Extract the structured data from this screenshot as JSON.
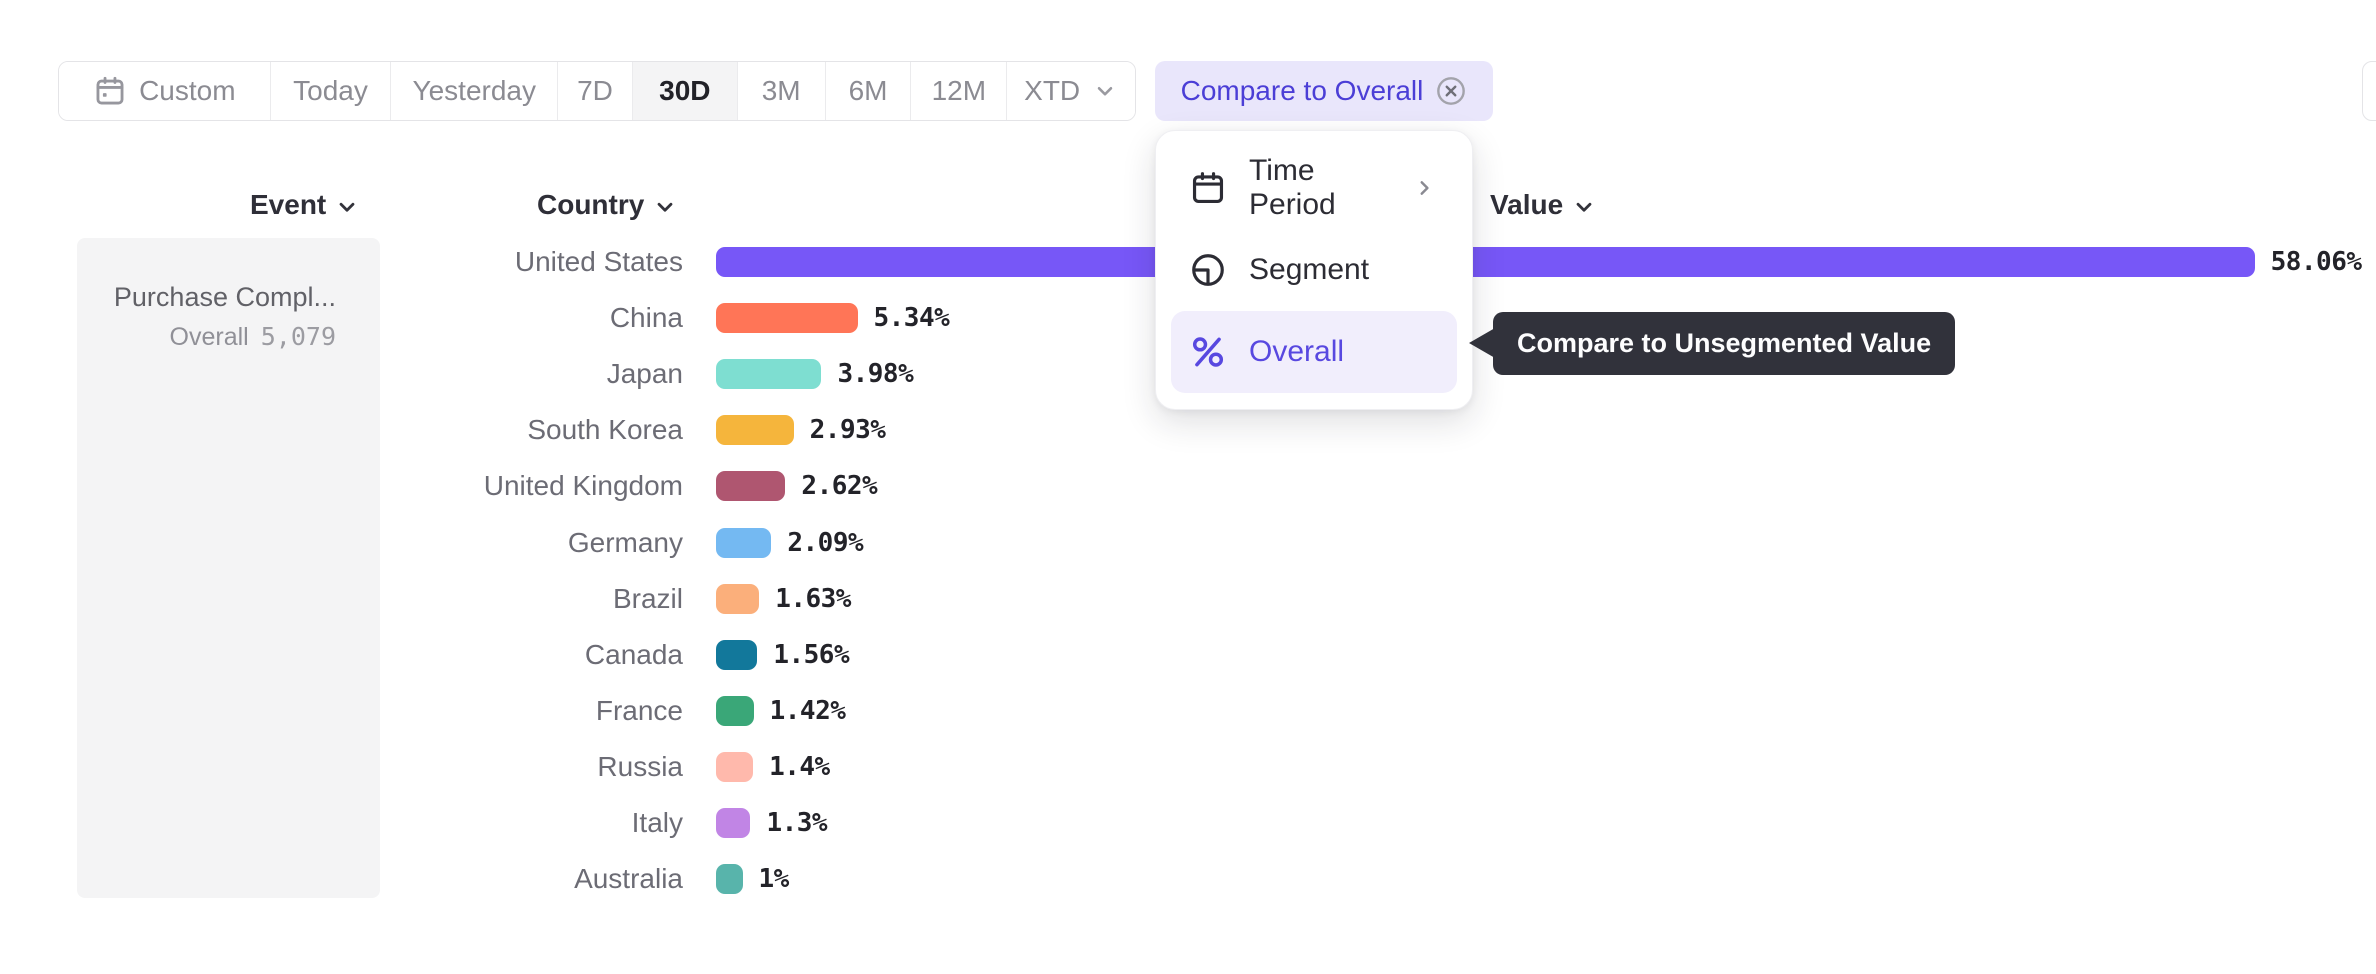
{
  "toolbar": {
    "items": [
      {
        "label": "Custom",
        "icon": "calendar",
        "selected": false
      },
      {
        "label": "Today",
        "selected": false
      },
      {
        "label": "Yesterday",
        "selected": false
      },
      {
        "label": "7D",
        "selected": false
      },
      {
        "label": "30D",
        "selected": true
      },
      {
        "label": "3M",
        "selected": false
      },
      {
        "label": "6M",
        "selected": false
      },
      {
        "label": "12M",
        "selected": false
      },
      {
        "label": "XTD",
        "selected": false,
        "chevron": true
      }
    ]
  },
  "compare_chip": {
    "label": "Compare to Overall"
  },
  "dropdown_menu": {
    "items": [
      {
        "label": "Time Period",
        "icon": "calendar",
        "has_submenu": true,
        "active": false
      },
      {
        "label": "Segment",
        "icon": "segment",
        "has_submenu": false,
        "active": false
      },
      {
        "label": "Overall",
        "icon": "percent",
        "has_submenu": false,
        "active": true
      }
    ]
  },
  "tooltip": {
    "text": "Compare to Unsegmented Value"
  },
  "columns": {
    "event_label": "Event",
    "country_label": "Country",
    "value_label": "Value"
  },
  "event_card": {
    "title": "Purchase Compl...",
    "overall_label": "Overall",
    "overall_value": "5,079"
  },
  "chart_data": {
    "type": "bar",
    "orientation": "horizontal",
    "title": "",
    "group_by": "Country",
    "event": "Purchase Compl...",
    "overall_total": "5,079",
    "categories": [
      "United States",
      "China",
      "Japan",
      "South Korea",
      "United Kingdom",
      "Germany",
      "Brazil",
      "Canada",
      "France",
      "Russia",
      "Italy",
      "Australia"
    ],
    "values": [
      58.06,
      5.34,
      3.98,
      2.93,
      2.62,
      2.09,
      1.63,
      1.56,
      1.42,
      1.4,
      1.3,
      1
    ],
    "value_labels": [
      "58.06%",
      "5.34%",
      "3.98%",
      "2.93%",
      "2.62%",
      "2.09%",
      "1.63%",
      "1.56%",
      "1.42%",
      "1.4%",
      "1.3%",
      "1%"
    ],
    "bar_colors": [
      "#7757F7",
      "#FF7557",
      "#7EDED1",
      "#F5B53C",
      "#AF5670",
      "#74B9F2",
      "#FBAF7B",
      "#12789B",
      "#3AA778",
      "#FFB9AC",
      "#C185E5",
      "#58B4AB"
    ],
    "unit": "%",
    "xlim": [
      0,
      60
    ],
    "grid": false,
    "legend": false
  },
  "colors": {
    "accent_purple": "#5848E0",
    "chip_bg": "#E9E6FB",
    "tooltip_bg": "#31323B",
    "card_bg": "#F4F4F5",
    "selected_range_bg": "#F4F4F5"
  }
}
